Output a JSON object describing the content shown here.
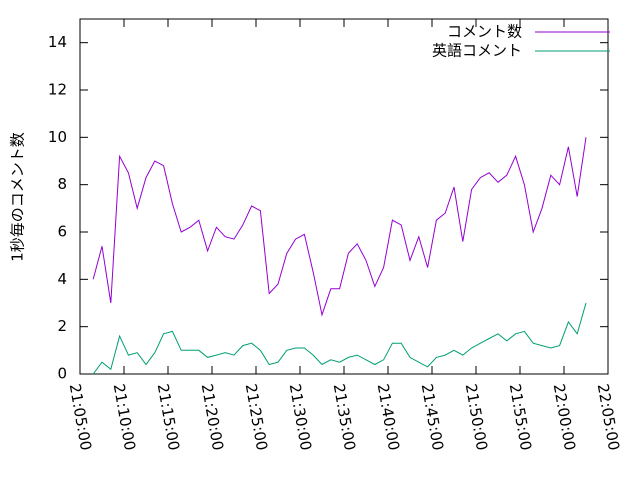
{
  "chart_data": {
    "type": "line",
    "ylabel": "1秒毎のコメント数",
    "x": [
      75990,
      76050,
      76110,
      76170,
      76230,
      76290,
      76350,
      76410,
      76470,
      76530,
      76590,
      76650,
      76710,
      76770,
      76830,
      76890,
      76950,
      77010,
      77070,
      77130,
      77190,
      77250,
      77310,
      77370,
      77430,
      77490,
      77550,
      77610,
      77670,
      77730,
      77790,
      77850,
      77910,
      77970,
      78030,
      78090,
      78150,
      78210,
      78270,
      78330,
      78390,
      78450,
      78510,
      78570,
      78630,
      78690,
      78750,
      78810,
      78870,
      78930,
      78990,
      79050,
      79110,
      79170,
      79230,
      79290,
      79350
    ],
    "series": [
      {
        "name": "コメント数",
        "color": "#9400d3",
        "values": [
          4.0,
          5.4,
          3.0,
          9.2,
          8.5,
          7.0,
          8.3,
          9.0,
          8.8,
          7.2,
          6.0,
          6.2,
          6.5,
          5.2,
          6.2,
          5.8,
          5.7,
          6.3,
          7.1,
          6.9,
          3.4,
          3.8,
          5.1,
          5.7,
          5.9,
          4.3,
          2.5,
          3.6,
          3.6,
          5.1,
          5.5,
          4.8,
          3.7,
          4.5,
          6.5,
          6.3,
          4.8,
          5.8,
          4.5,
          6.5,
          6.8,
          7.9,
          5.6,
          7.8,
          8.3,
          8.5,
          8.1,
          8.4,
          9.2,
          8.0,
          6.0,
          7.0,
          8.4,
          8.0,
          9.6,
          7.5,
          10.0
        ]
      },
      {
        "name": "英語コメント",
        "color": "#009e73",
        "values": [
          0.0,
          0.5,
          0.2,
          1.6,
          0.8,
          0.9,
          0.4,
          0.9,
          1.7,
          1.8,
          1.0,
          1.0,
          1.0,
          0.7,
          0.8,
          0.9,
          0.8,
          1.2,
          1.3,
          1.0,
          0.4,
          0.5,
          1.0,
          1.1,
          1.1,
          0.8,
          0.4,
          0.6,
          0.5,
          0.7,
          0.8,
          0.6,
          0.4,
          0.6,
          1.3,
          1.3,
          0.7,
          0.5,
          0.3,
          0.7,
          0.8,
          1.0,
          0.8,
          1.1,
          1.3,
          1.5,
          1.7,
          1.4,
          1.7,
          1.8,
          1.3,
          1.2,
          1.1,
          1.2,
          2.2,
          1.7,
          3.0
        ]
      }
    ],
    "xlim": [
      75900,
      79500
    ],
    "xticks": [
      {
        "value": 75900,
        "label": "21:05:00"
      },
      {
        "value": 76200,
        "label": "21:10:00"
      },
      {
        "value": 76500,
        "label": "21:15:00"
      },
      {
        "value": 76800,
        "label": "21:20:00"
      },
      {
        "value": 77100,
        "label": "21:25:00"
      },
      {
        "value": 77400,
        "label": "21:30:00"
      },
      {
        "value": 77700,
        "label": "21:35:00"
      },
      {
        "value": 78000,
        "label": "21:40:00"
      },
      {
        "value": 78300,
        "label": "21:45:00"
      },
      {
        "value": 78600,
        "label": "21:50:00"
      },
      {
        "value": 78900,
        "label": "21:55:00"
      },
      {
        "value": 79200,
        "label": "22:00:00"
      },
      {
        "value": 79500,
        "label": "22:05:00"
      }
    ],
    "ylim": [
      0,
      15
    ],
    "yticks": [
      0,
      2,
      4,
      6,
      8,
      10,
      12,
      14
    ],
    "legend": "upper right"
  }
}
